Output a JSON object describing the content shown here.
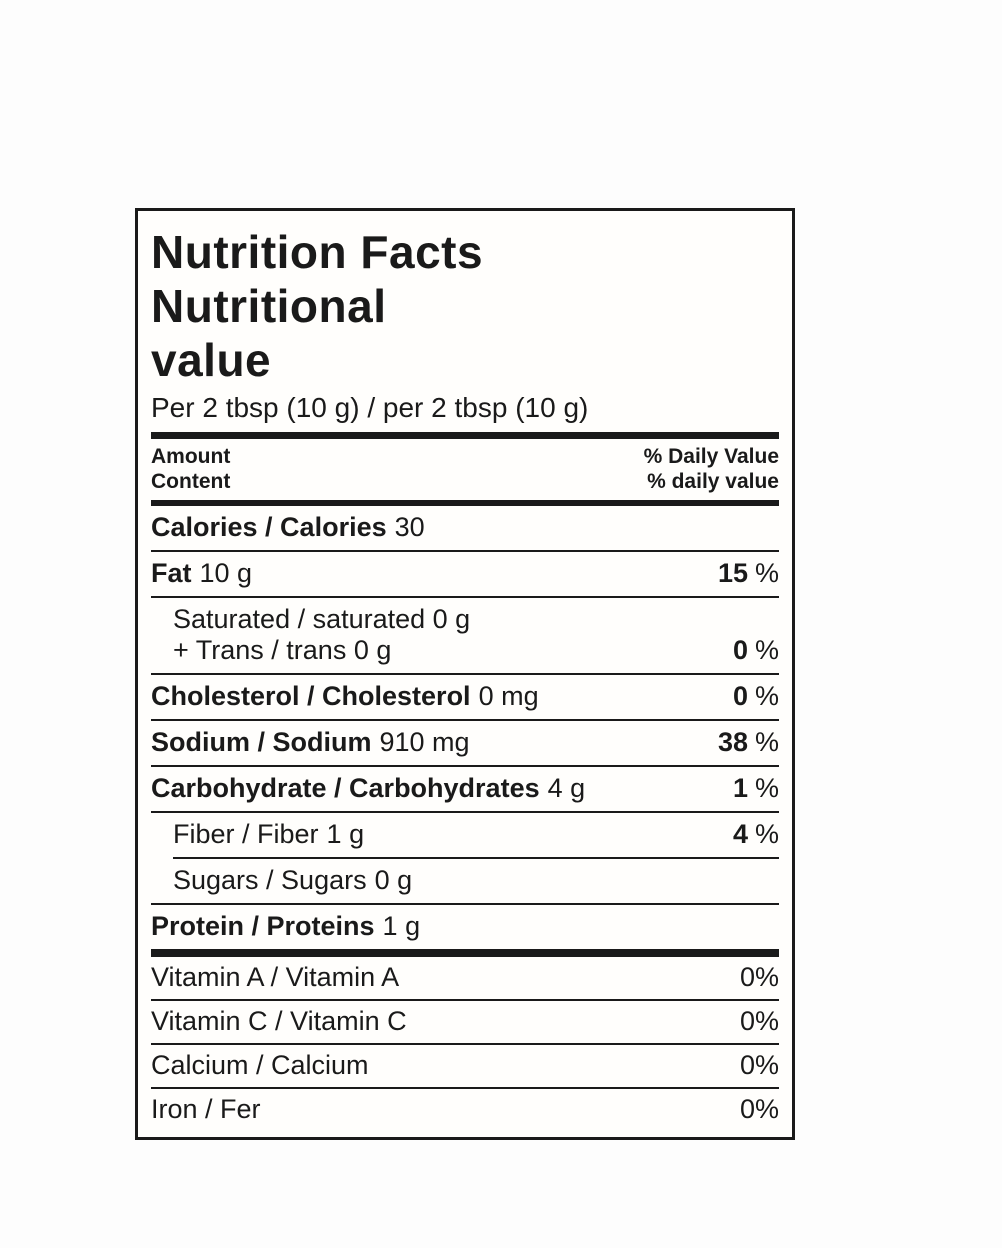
{
  "label": {
    "title_lines": [
      "Nutrition Facts",
      "Nutritional",
      "value"
    ],
    "serving": "Per 2 tbsp (10 g) / per 2 tbsp (10 g)",
    "header": {
      "amount_line1": "Amount",
      "amount_line2": "Content",
      "dv_line1": "% Daily Value",
      "dv_line2": "% daily value"
    },
    "rows": {
      "calories": {
        "name": "Calories / Calories",
        "amount": "30"
      },
      "fat": {
        "name": "Fat",
        "amount": "10 g",
        "pct": "15",
        "pct_sign": "%"
      },
      "saturated_trans": {
        "line1": "Saturated / saturated 0 g",
        "line2": "+ Trans / trans 0 g",
        "pct": "0",
        "pct_sign": "%"
      },
      "cholesterol": {
        "name": "Cholesterol / Cholesterol",
        "amount": "0 mg",
        "pct": "0",
        "pct_sign": "%"
      },
      "sodium": {
        "name": "Sodium / Sodium",
        "amount": "910 mg",
        "pct": "38",
        "pct_sign": "%"
      },
      "carbohydrate": {
        "name": "Carbohydrate / Carbohydrates",
        "amount": "4 g",
        "pct": "1",
        "pct_sign": "%"
      },
      "fiber": {
        "name": "Fiber / Fiber",
        "amount": "1 g",
        "pct": "4",
        "pct_sign": "%"
      },
      "sugars": {
        "name": "Sugars / Sugars",
        "amount": "0 g"
      },
      "protein": {
        "name": "Protein / Proteins",
        "amount": "1 g"
      }
    },
    "micronutrients": [
      {
        "name": "Vitamin A / Vitamin A",
        "value": "0%"
      },
      {
        "name": "Vitamin C / Vitamin C",
        "value": "0%"
      },
      {
        "name": "Calcium / Calcium",
        "value": "0%"
      },
      {
        "name": "Iron / Fer",
        "value": "0%"
      }
    ],
    "colors": {
      "text": "#1a1a1a",
      "rule": "#1a1a1a",
      "border": "#1a1a1a",
      "label_background": "#fffefc",
      "page_background": "#fdfdfd"
    }
  }
}
